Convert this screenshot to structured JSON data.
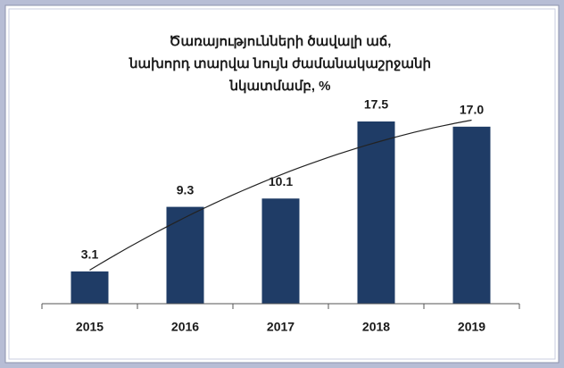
{
  "chart_data": {
    "type": "bar",
    "title": [
      "Ծառայությունների ծավալի աճ,",
      "նախորդ տարվա նույն ժամանակաշրջանի",
      "նկատմամբ, %"
    ],
    "categories": [
      "2015",
      "2016",
      "2017",
      "2018",
      "2019"
    ],
    "values": [
      3.1,
      9.3,
      10.1,
      17.5,
      17.0
    ],
    "value_labels": [
      "3.1",
      "9.3",
      "10.1",
      "17.5",
      "17.0"
    ],
    "color": "#1f3c66"
  }
}
